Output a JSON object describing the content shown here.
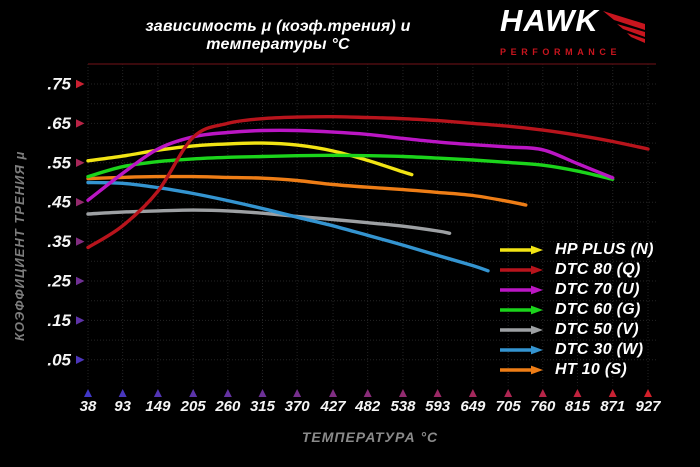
{
  "logo": {
    "brand": "HAWK",
    "subtitle": "PERFORMANCE",
    "accent": "#c8151e"
  },
  "chart_data": {
    "type": "line",
    "title": "зависимость μ (коэф.трения) и температуры °C",
    "xlabel": "ТЕМПЕРАТУРА °C",
    "ylabel": "КОЭФФИЦИЕНТ ТРЕНИЯ μ",
    "x_ticks": [
      38,
      93,
      149,
      205,
      260,
      315,
      370,
      427,
      482,
      538,
      593,
      649,
      705,
      760,
      815,
      871,
      927
    ],
    "y_ticks": [
      0.75,
      0.65,
      0.55,
      0.45,
      0.35,
      0.25,
      0.15,
      0.05
    ],
    "y_tick_labels": [
      ".75",
      ".65",
      ".55",
      ".45",
      ".35",
      ".25",
      ".15",
      ".05"
    ],
    "xlim": [
      38,
      927
    ],
    "ylim": [
      0.0,
      0.8
    ],
    "grid": true,
    "legend_position": "lower right",
    "axis_gradient": {
      "red": "#d42028",
      "blue": "#4038c8"
    },
    "grid_color": "#242424",
    "tick_label_color": "#f5f5f5",
    "series": [
      {
        "name": "HP PLUS (N)",
        "color": "#f2e414",
        "points": [
          [
            38,
            0.555
          ],
          [
            93,
            0.567
          ],
          [
            149,
            0.582
          ],
          [
            205,
            0.593
          ],
          [
            260,
            0.598
          ],
          [
            315,
            0.6
          ],
          [
            370,
            0.595
          ],
          [
            427,
            0.58
          ],
          [
            482,
            0.556
          ],
          [
            538,
            0.527
          ],
          [
            552,
            0.52
          ]
        ]
      },
      {
        "name": "DTC 80 (Q)",
        "color": "#b8141c",
        "points": [
          [
            38,
            0.335
          ],
          [
            93,
            0.39
          ],
          [
            149,
            0.478
          ],
          [
            205,
            0.615
          ],
          [
            260,
            0.65
          ],
          [
            315,
            0.662
          ],
          [
            370,
            0.666
          ],
          [
            427,
            0.667
          ],
          [
            482,
            0.665
          ],
          [
            538,
            0.662
          ],
          [
            593,
            0.657
          ],
          [
            649,
            0.65
          ],
          [
            705,
            0.643
          ],
          [
            760,
            0.633
          ],
          [
            815,
            0.62
          ],
          [
            871,
            0.604
          ],
          [
            927,
            0.585
          ]
        ]
      },
      {
        "name": "DTC 70 (U)",
        "color": "#bb16c4",
        "points": [
          [
            38,
            0.455
          ],
          [
            93,
            0.523
          ],
          [
            149,
            0.585
          ],
          [
            205,
            0.616
          ],
          [
            260,
            0.627
          ],
          [
            315,
            0.632
          ],
          [
            370,
            0.632
          ],
          [
            427,
            0.628
          ],
          [
            482,
            0.622
          ],
          [
            538,
            0.612
          ],
          [
            593,
            0.603
          ],
          [
            649,
            0.596
          ],
          [
            705,
            0.59
          ],
          [
            760,
            0.583
          ],
          [
            815,
            0.548
          ],
          [
            871,
            0.512
          ]
        ]
      },
      {
        "name": "DTC 60 (G)",
        "color": "#1bd41b",
        "points": [
          [
            38,
            0.515
          ],
          [
            93,
            0.54
          ],
          [
            149,
            0.553
          ],
          [
            205,
            0.56
          ],
          [
            260,
            0.564
          ],
          [
            315,
            0.566
          ],
          [
            370,
            0.568
          ],
          [
            427,
            0.569
          ],
          [
            482,
            0.568
          ],
          [
            538,
            0.566
          ],
          [
            593,
            0.562
          ],
          [
            649,
            0.557
          ],
          [
            705,
            0.551
          ],
          [
            760,
            0.544
          ],
          [
            815,
            0.529
          ],
          [
            871,
            0.508
          ]
        ]
      },
      {
        "name": "DTC 50 (V)",
        "color": "#9da0a3",
        "points": [
          [
            38,
            0.42
          ],
          [
            93,
            0.425
          ],
          [
            149,
            0.428
          ],
          [
            205,
            0.43
          ],
          [
            260,
            0.428
          ],
          [
            315,
            0.422
          ],
          [
            370,
            0.414
          ],
          [
            427,
            0.406
          ],
          [
            482,
            0.398
          ],
          [
            538,
            0.389
          ],
          [
            593,
            0.377
          ],
          [
            612,
            0.371
          ]
        ]
      },
      {
        "name": "DTC 30 (W)",
        "color": "#3494d0",
        "points": [
          [
            38,
            0.5
          ],
          [
            93,
            0.498
          ],
          [
            149,
            0.487
          ],
          [
            205,
            0.472
          ],
          [
            260,
            0.454
          ],
          [
            315,
            0.434
          ],
          [
            370,
            0.412
          ],
          [
            427,
            0.39
          ],
          [
            482,
            0.366
          ],
          [
            538,
            0.341
          ],
          [
            593,
            0.315
          ],
          [
            649,
            0.289
          ],
          [
            673,
            0.276
          ]
        ]
      },
      {
        "name": "HT 10 (S)",
        "color": "#ee7d16",
        "points": [
          [
            38,
            0.51
          ],
          [
            93,
            0.513
          ],
          [
            149,
            0.515
          ],
          [
            205,
            0.515
          ],
          [
            260,
            0.513
          ],
          [
            315,
            0.511
          ],
          [
            370,
            0.505
          ],
          [
            427,
            0.495
          ],
          [
            482,
            0.488
          ],
          [
            538,
            0.482
          ],
          [
            593,
            0.475
          ],
          [
            649,
            0.467
          ],
          [
            705,
            0.452
          ],
          [
            733,
            0.443
          ]
        ]
      }
    ]
  }
}
